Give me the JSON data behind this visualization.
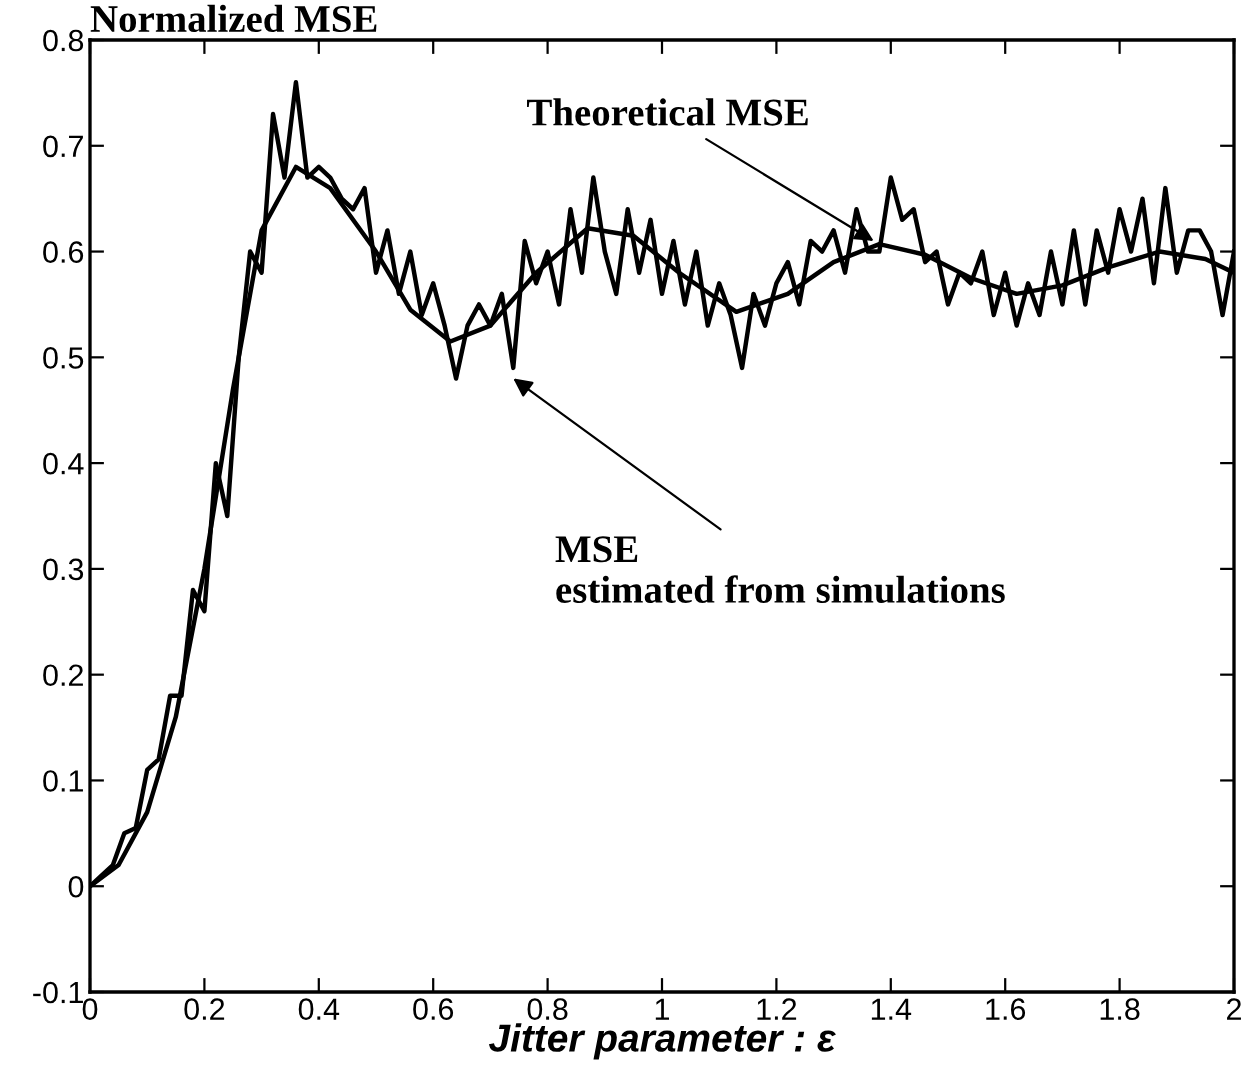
{
  "chart_data": {
    "type": "line",
    "ylabel": "Normalized MSE",
    "xlabel": "Jitter parameter : ε",
    "xlim": [
      0,
      2
    ],
    "ylim": [
      -0.1,
      0.8
    ],
    "xticks": [
      0,
      0.2,
      0.4,
      0.6,
      0.8,
      1,
      1.2,
      1.4,
      1.6,
      1.8,
      2
    ],
    "yticks": [
      -0.1,
      0,
      0.1,
      0.2,
      0.3,
      0.4,
      0.5,
      0.6,
      0.7,
      0.8
    ],
    "grid": false,
    "legend": false,
    "marker": "none",
    "line_style": "solid",
    "series": [
      {
        "color": "#000000",
        "x": [
          0,
          0.02,
          0.04,
          0.06,
          0.08,
          0.1,
          0.12,
          0.14,
          0.16,
          0.18,
          0.2,
          0.22,
          0.24,
          0.26,
          0.28,
          0.3,
          0.32,
          0.34,
          0.36,
          0.38,
          0.4,
          0.42,
          0.44,
          0.46,
          0.48,
          0.5,
          0.52,
          0.54,
          0.56,
          0.58,
          0.6,
          0.62,
          0.64,
          0.66,
          0.68,
          0.7,
          0.72,
          0.74,
          0.76,
          0.78,
          0.8,
          0.82,
          0.84,
          0.86,
          0.88,
          0.9,
          0.92,
          0.94,
          0.96,
          0.98,
          1.0,
          1.02,
          1.04,
          1.06,
          1.08,
          1.1,
          1.12,
          1.14,
          1.16,
          1.18,
          1.2,
          1.22,
          1.24,
          1.26,
          1.28,
          1.3,
          1.32,
          1.34,
          1.36,
          1.38,
          1.4,
          1.42,
          1.44,
          1.46,
          1.48,
          1.5,
          1.52,
          1.54,
          1.56,
          1.58,
          1.6,
          1.62,
          1.64,
          1.66,
          1.68,
          1.7,
          1.72,
          1.74,
          1.76,
          1.78,
          1.8,
          1.82,
          1.84,
          1.86,
          1.88,
          1.9,
          1.92,
          1.94,
          1.96,
          1.98,
          2.0
        ],
        "values": [
          0,
          0.01,
          0.02,
          0.05,
          0.055,
          0.11,
          0.12,
          0.18,
          0.18,
          0.28,
          0.26,
          0.4,
          0.35,
          0.5,
          0.6,
          0.58,
          0.73,
          0.67,
          0.76,
          0.67,
          0.68,
          0.67,
          0.65,
          0.64,
          0.66,
          0.58,
          0.62,
          0.56,
          0.6,
          0.54,
          0.57,
          0.53,
          0.48,
          0.53,
          0.55,
          0.53,
          0.56,
          0.49,
          0.61,
          0.57,
          0.6,
          0.55,
          0.64,
          0.58,
          0.67,
          0.6,
          0.56,
          0.64,
          0.58,
          0.63,
          0.56,
          0.61,
          0.55,
          0.6,
          0.53,
          0.57,
          0.54,
          0.49,
          0.56,
          0.53,
          0.57,
          0.59,
          0.55,
          0.61,
          0.6,
          0.62,
          0.58,
          0.64,
          0.6,
          0.6,
          0.67,
          0.63,
          0.64,
          0.59,
          0.6,
          0.55,
          0.58,
          0.57,
          0.6,
          0.54,
          0.58,
          0.53,
          0.57,
          0.54,
          0.6,
          0.55,
          0.62,
          0.55,
          0.62,
          0.58,
          0.64,
          0.6,
          0.65,
          0.57,
          0.66,
          0.58,
          0.62,
          0.62,
          0.6,
          0.54,
          0.6
        ]
      },
      {
        "color": "#000000",
        "x": [
          0,
          0.05,
          0.1,
          0.15,
          0.2,
          0.25,
          0.3,
          0.36,
          0.42,
          0.5,
          0.56,
          0.63,
          0.7,
          0.78,
          0.87,
          0.95,
          1.03,
          1.13,
          1.22,
          1.3,
          1.38,
          1.46,
          1.54,
          1.62,
          1.7,
          1.78,
          1.87,
          1.95,
          2
        ],
        "values": [
          0,
          0.02,
          0.07,
          0.16,
          0.3,
          0.47,
          0.62,
          0.68,
          0.66,
          0.6,
          0.545,
          0.515,
          0.53,
          0.58,
          0.622,
          0.615,
          0.58,
          0.543,
          0.56,
          0.59,
          0.607,
          0.597,
          0.575,
          0.56,
          0.568,
          0.585,
          0.6,
          0.593,
          0.58
        ]
      }
    ],
    "annotations": [
      {
        "text": "Theoretical MSE",
        "x": 1.37,
        "y": 0.61
      },
      {
        "text": "MSE\nestimated from simulations",
        "x": 0.74,
        "y": 0.48
      }
    ]
  }
}
